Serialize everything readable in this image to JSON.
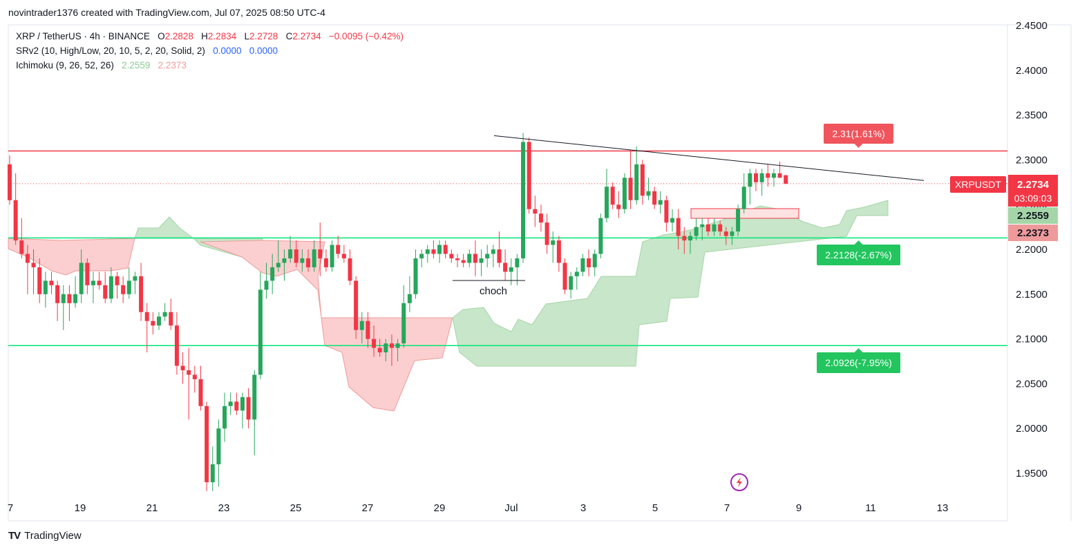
{
  "credit": "novintrader1376 created with TradingView.com, Jul 07, 2025 08:50 UTC-4",
  "legend": {
    "symbol_line": "XRP / TetherUS · 4h · BINANCE",
    "o_label": "O",
    "o_value": "2.2828",
    "h_label": "H",
    "h_value": "2.2834",
    "l_label": "L",
    "l_value": "2.2728",
    "c_label": "C",
    "c_value": "2.2734",
    "change": "−0.0095 (−0.42%)",
    "srv2_label": "SRv2 (10, High/Low, 20, 10, 5, 2, 20, Solid, 2)",
    "srv2_v1": "0.0000",
    "srv2_v2": "0.0000",
    "ichimoku_label": "Ichimoku (9, 26, 52, 26)",
    "ichimoku_v1": "2.2559",
    "ichimoku_v2": "2.2373"
  },
  "footer": {
    "brand": "TradingView"
  },
  "colors": {
    "up": "#089981",
    "up_candle": "#26A65B",
    "down": "#F23645",
    "cloud_green": "#A5D6A7",
    "cloud_red": "#F8BBBC",
    "resistance": "#F23645",
    "support": "#00E676"
  },
  "chart_data": {
    "type": "candlestick",
    "symbol": "XRPUSDT",
    "timeframe": "4h",
    "ylim": [
      1.92,
      2.455
    ],
    "y_ticks": [
      "2.4500",
      "2.4000",
      "2.3500",
      "2.3000",
      "2.2500",
      "2.2000",
      "2.1500",
      "2.1000",
      "2.0500",
      "2.0000",
      "1.9500"
    ],
    "x_ticks": [
      "7",
      "19",
      "21",
      "23",
      "25",
      "27",
      "29",
      "Jul",
      "3",
      "5",
      "7",
      "9",
      "11",
      "13"
    ],
    "price_label": {
      "symbol": "XRPUSDT",
      "price": "2.2734",
      "countdown": "03:09:03",
      "value": 2.2734
    },
    "ichimoku_labels": [
      {
        "text": "2.2559",
        "value": 2.2559
      },
      {
        "text": "2.2373",
        "value": 2.2373
      }
    ],
    "levels": [
      {
        "kind": "resistance",
        "value": 2.31,
        "label": "2.31(1.61%)"
      },
      {
        "kind": "support",
        "value": 2.2128,
        "label": "2.2128(-2.67%)"
      },
      {
        "kind": "support",
        "value": 2.0926,
        "label": "2.0926(-7.95%)"
      }
    ],
    "annotation": {
      "text": "choch",
      "value": 2.163
    },
    "trendline": [
      {
        "x": "Jun 30",
        "y": 2.327
      },
      {
        "x": "Jul 12",
        "y": 2.277
      }
    ],
    "candles": [
      [
        2.295,
        2.305,
        2.25,
        2.255
      ],
      [
        2.255,
        2.285,
        2.205,
        2.21
      ],
      [
        2.21,
        2.235,
        2.19,
        2.195
      ],
      [
        2.195,
        2.205,
        2.15,
        2.185
      ],
      [
        2.185,
        2.2,
        2.15,
        2.18
      ],
      [
        2.18,
        2.19,
        2.14,
        2.15
      ],
      [
        2.15,
        2.175,
        2.135,
        2.165
      ],
      [
        2.165,
        2.175,
        2.15,
        2.16
      ],
      [
        2.16,
        2.165,
        2.12,
        2.14
      ],
      [
        2.14,
        2.16,
        2.11,
        2.15
      ],
      [
        2.15,
        2.16,
        2.12,
        2.14
      ],
      [
        2.14,
        2.17,
        2.135,
        2.15
      ],
      [
        2.15,
        2.2,
        2.14,
        2.185
      ],
      [
        2.185,
        2.19,
        2.15,
        2.16
      ],
      [
        2.16,
        2.175,
        2.14,
        2.165
      ],
      [
        2.165,
        2.175,
        2.155,
        2.16
      ],
      [
        2.16,
        2.175,
        2.14,
        2.145
      ],
      [
        2.145,
        2.18,
        2.14,
        2.17
      ],
      [
        2.17,
        2.175,
        2.145,
        2.16
      ],
      [
        2.16,
        2.17,
        2.14,
        2.15
      ],
      [
        2.15,
        2.18,
        2.145,
        2.165
      ],
      [
        2.165,
        2.175,
        2.15,
        2.17
      ],
      [
        2.17,
        2.185,
        2.12,
        2.13
      ],
      [
        2.13,
        2.14,
        2.085,
        2.12
      ],
      [
        2.12,
        2.13,
        2.105,
        2.115
      ],
      [
        2.115,
        2.13,
        2.11,
        2.125
      ],
      [
        2.125,
        2.14,
        2.12,
        2.13
      ],
      [
        2.13,
        2.145,
        2.11,
        2.115
      ],
      [
        2.115,
        2.13,
        2.06,
        2.07
      ],
      [
        2.07,
        2.085,
        2.05,
        2.065
      ],
      [
        2.065,
        2.09,
        2.01,
        2.06
      ],
      [
        2.06,
        2.07,
        2.04,
        2.055
      ],
      [
        2.055,
        2.07,
        2.02,
        2.025
      ],
      [
        2.025,
        2.03,
        1.93,
        1.94
      ],
      [
        1.94,
        1.98,
        1.93,
        1.96
      ],
      [
        1.96,
        2.01,
        1.935,
        2.0
      ],
      [
        2.0,
        2.04,
        1.985,
        2.025
      ],
      [
        2.025,
        2.04,
        2.015,
        2.03
      ],
      [
        2.03,
        2.04,
        2.015,
        2.02
      ],
      [
        2.02,
        2.04,
        2.0,
        2.035
      ],
      [
        2.035,
        2.045,
        2.0,
        2.01
      ],
      [
        2.01,
        2.065,
        1.97,
        2.06
      ],
      [
        2.06,
        2.175,
        2.055,
        2.155
      ],
      [
        2.155,
        2.185,
        2.145,
        2.165
      ],
      [
        2.165,
        2.195,
        2.15,
        2.18
      ],
      [
        2.18,
        2.21,
        2.175,
        2.185
      ],
      [
        2.185,
        2.2,
        2.165,
        2.19
      ],
      [
        2.19,
        2.215,
        2.185,
        2.2
      ],
      [
        2.2,
        2.21,
        2.18,
        2.185
      ],
      [
        2.185,
        2.2,
        2.175,
        2.19
      ],
      [
        2.19,
        2.2,
        2.175,
        2.18
      ],
      [
        2.18,
        2.21,
        2.175,
        2.2
      ],
      [
        2.2,
        2.23,
        2.17,
        2.19
      ],
      [
        2.19,
        2.2,
        2.175,
        2.18
      ],
      [
        2.18,
        2.21,
        2.175,
        2.205
      ],
      [
        2.205,
        2.215,
        2.19,
        2.195
      ],
      [
        2.195,
        2.205,
        2.185,
        2.19
      ],
      [
        2.19,
        2.2,
        2.16,
        2.165
      ],
      [
        2.165,
        2.17,
        2.1,
        2.11
      ],
      [
        2.11,
        2.13,
        2.095,
        2.12
      ],
      [
        2.12,
        2.13,
        2.09,
        2.1
      ],
      [
        2.1,
        2.115,
        2.08,
        2.09
      ],
      [
        2.09,
        2.1,
        2.08,
        2.085
      ],
      [
        2.085,
        2.1,
        2.075,
        2.095
      ],
      [
        2.095,
        2.105,
        2.07,
        2.09
      ],
      [
        2.09,
        2.1,
        2.075,
        2.095
      ],
      [
        2.095,
        2.16,
        2.09,
        2.14
      ],
      [
        2.14,
        2.17,
        2.13,
        2.15
      ],
      [
        2.15,
        2.2,
        2.145,
        2.19
      ],
      [
        2.19,
        2.2,
        2.18,
        2.195
      ],
      [
        2.195,
        2.205,
        2.185,
        2.2
      ],
      [
        2.2,
        2.21,
        2.19,
        2.195
      ],
      [
        2.195,
        2.21,
        2.185,
        2.205
      ],
      [
        2.205,
        2.21,
        2.19,
        2.195
      ],
      [
        2.195,
        2.2,
        2.185,
        2.19
      ],
      [
        2.19,
        2.195,
        2.18,
        2.188
      ],
      [
        2.188,
        2.195,
        2.18,
        2.185
      ],
      [
        2.185,
        2.2,
        2.18,
        2.195
      ],
      [
        2.195,
        2.21,
        2.17,
        2.185
      ],
      [
        2.185,
        2.2,
        2.17,
        2.19
      ],
      [
        2.19,
        2.205,
        2.18,
        2.195
      ],
      [
        2.195,
        2.205,
        2.18,
        2.2
      ],
      [
        2.2,
        2.22,
        2.18,
        2.185
      ],
      [
        2.185,
        2.2,
        2.165,
        2.175
      ],
      [
        2.175,
        2.19,
        2.16,
        2.18
      ],
      [
        2.18,
        2.195,
        2.16,
        2.19
      ],
      [
        2.19,
        2.33,
        2.185,
        2.32
      ],
      [
        2.32,
        2.325,
        2.24,
        2.245
      ],
      [
        2.245,
        2.26,
        2.225,
        2.24
      ],
      [
        2.24,
        2.25,
        2.22,
        2.23
      ],
      [
        2.23,
        2.24,
        2.195,
        2.205
      ],
      [
        2.205,
        2.22,
        2.185,
        2.21
      ],
      [
        2.21,
        2.215,
        2.175,
        2.185
      ],
      [
        2.185,
        2.19,
        2.15,
        2.155
      ],
      [
        2.155,
        2.175,
        2.145,
        2.17
      ],
      [
        2.17,
        2.18,
        2.155,
        2.175
      ],
      [
        2.175,
        2.195,
        2.17,
        2.19
      ],
      [
        2.19,
        2.2,
        2.17,
        2.18
      ],
      [
        2.18,
        2.2,
        2.17,
        2.195
      ],
      [
        2.195,
        2.24,
        2.19,
        2.235
      ],
      [
        2.235,
        2.29,
        2.23,
        2.27
      ],
      [
        2.27,
        2.275,
        2.245,
        2.25
      ],
      [
        2.25,
        2.265,
        2.235,
        2.245
      ],
      [
        2.245,
        2.285,
        2.24,
        2.28
      ],
      [
        2.28,
        2.31,
        2.245,
        2.255
      ],
      [
        2.255,
        2.315,
        2.25,
        2.295
      ],
      [
        2.295,
        2.3,
        2.25,
        2.26
      ],
      [
        2.26,
        2.28,
        2.255,
        2.265
      ],
      [
        2.265,
        2.27,
        2.245,
        2.25
      ],
      [
        2.25,
        2.265,
        2.24,
        2.255
      ],
      [
        2.255,
        2.26,
        2.22,
        2.23
      ],
      [
        2.23,
        2.245,
        2.22,
        2.235
      ],
      [
        2.235,
        2.245,
        2.2,
        2.215
      ],
      [
        2.215,
        2.225,
        2.195,
        2.21
      ],
      [
        2.21,
        2.22,
        2.195,
        2.215
      ],
      [
        2.215,
        2.235,
        2.21,
        2.225
      ],
      [
        2.225,
        2.235,
        2.21,
        2.228
      ],
      [
        2.228,
        2.235,
        2.215,
        2.22
      ],
      [
        2.22,
        2.235,
        2.215,
        2.228
      ],
      [
        2.228,
        2.232,
        2.215,
        2.22
      ],
      [
        2.22,
        2.225,
        2.205,
        2.215
      ],
      [
        2.215,
        2.225,
        2.205,
        2.22
      ],
      [
        2.22,
        2.25,
        2.215,
        2.245
      ],
      [
        2.245,
        2.285,
        2.24,
        2.27
      ],
      [
        2.27,
        2.29,
        2.25,
        2.285
      ],
      [
        2.285,
        2.29,
        2.265,
        2.275
      ],
      [
        2.275,
        2.29,
        2.26,
        2.285
      ],
      [
        2.285,
        2.295,
        2.27,
        2.28
      ],
      [
        2.28,
        2.29,
        2.27,
        2.285
      ],
      [
        2.285,
        2.298,
        2.28,
        2.28
      ],
      [
        2.2828,
        2.2834,
        2.2728,
        2.2734
      ]
    ]
  }
}
